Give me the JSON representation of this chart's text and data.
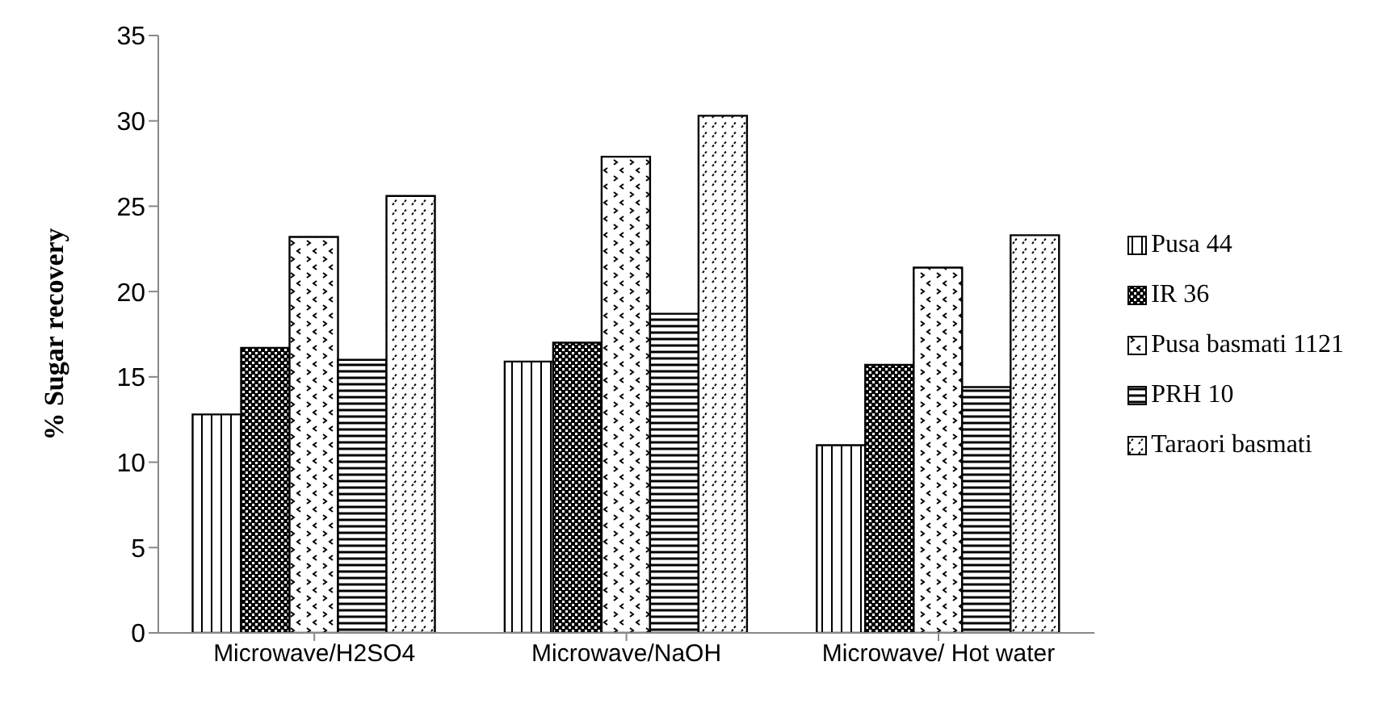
{
  "chart_data": {
    "type": "bar",
    "ylabel": "% Sugar recovery",
    "categories": [
      "Microwave/H2SO4",
      "Microwave/NaOH",
      "Microwave/ Hot water"
    ],
    "series": [
      {
        "name": "Pusa 44",
        "color": "#000000",
        "values": [
          12.8,
          15.9,
          11.0
        ]
      },
      {
        "name": "IR 36",
        "color": "#000000",
        "values": [
          16.7,
          17.0,
          15.7
        ]
      },
      {
        "name": "Pusa basmati 1121",
        "color": "#000000",
        "values": [
          23.2,
          27.9,
          21.4
        ]
      },
      {
        "name": "PRH 10",
        "color": "#000000",
        "values": [
          16.0,
          18.7,
          14.4
        ]
      },
      {
        "name": "Taraori basmati",
        "color": "#000000",
        "values": [
          25.6,
          30.3,
          23.3
        ]
      }
    ],
    "ylim": [
      0,
      35
    ],
    "yticks": [
      0,
      5,
      10,
      15,
      20,
      25,
      30,
      35
    ],
    "grid": false,
    "legend": "right"
  }
}
